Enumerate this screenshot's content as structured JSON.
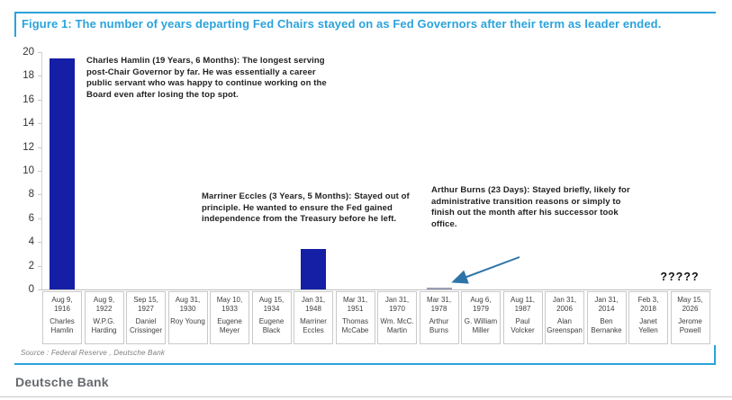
{
  "figure": {
    "title": "Figure 1: The number of years departing Fed Chairs stayed on as Fed Governors after their term as leader ended.",
    "source": "Source : Federal Reserve , Deutsche Bank",
    "brand": "Deutsche Bank",
    "accent_blue": "#2AA3DC",
    "bar_color": "#141FA5",
    "arrow_color": "#2E74A8"
  },
  "chart_data": {
    "type": "bar",
    "title": "Figure 1: The number of years departing Fed Chairs stayed on as Fed Governors after their term as leader ended.",
    "xlabel": "",
    "ylabel": "",
    "ylim": [
      0,
      20
    ],
    "yticks": [
      0,
      2,
      4,
      6,
      8,
      10,
      12,
      14,
      16,
      18,
      20
    ],
    "grid": false,
    "legend": false,
    "categories": [
      {
        "date": "Aug 9,\n1916",
        "name": "Charles\nHamlin"
      },
      {
        "date": "Aug 9,\n1922",
        "name": "W.P.G.\nHarding"
      },
      {
        "date": "Sep 15,\n1927",
        "name": "Daniel\nCrissinger"
      },
      {
        "date": "Aug 31,\n1930",
        "name": "Roy Young"
      },
      {
        "date": "May 10,\n1933",
        "name": "Eugene\nMeyer"
      },
      {
        "date": "Aug 15,\n1934",
        "name": "Eugene\nBlack"
      },
      {
        "date": "Jan 31,\n1948",
        "name": "Marriner\nEccles"
      },
      {
        "date": "Mar 31,\n1951",
        "name": "Thomas\nMcCabe"
      },
      {
        "date": "Jan 31,\n1970",
        "name": "Wm. McC.\nMartin"
      },
      {
        "date": "Mar 31,\n1978",
        "name": "Arthur\nBurns"
      },
      {
        "date": "Aug 6,\n1979",
        "name": "G. William\nMiller"
      },
      {
        "date": "Aug 11,\n1987",
        "name": "Paul\nVolcker"
      },
      {
        "date": "Jan 31,\n2006",
        "name": "Alan\nGreenspan"
      },
      {
        "date": "Jan 31,\n2014",
        "name": "Ben\nBernanke"
      },
      {
        "date": "Feb 3, 2018",
        "name": "Janet\nYellen"
      },
      {
        "date": "May 15,\n2026",
        "name": "Jerome\nPowell"
      }
    ],
    "values": [
      19.5,
      0,
      0,
      0,
      0,
      0,
      3.42,
      0,
      0,
      0.06,
      0,
      0,
      0,
      0,
      0,
      null
    ],
    "question_label": "?????",
    "annotations": [
      {
        "text": "Charles Hamlin (19 Years, 6 Months): The longest serving post-Chair Governor by far. He was essentially a career public servant who was happy to continue working on the Board even after losing the top spot."
      },
      {
        "text": "Marriner Eccles (3 Years, 5 Months): Stayed out of principle. He wanted to ensure the Fed gained independence from the Treasury before he left."
      },
      {
        "text": "Arthur Burns (23 Days): Stayed briefly, likely for administrative transition reasons or simply to finish out the month after his successor took office."
      }
    ]
  }
}
